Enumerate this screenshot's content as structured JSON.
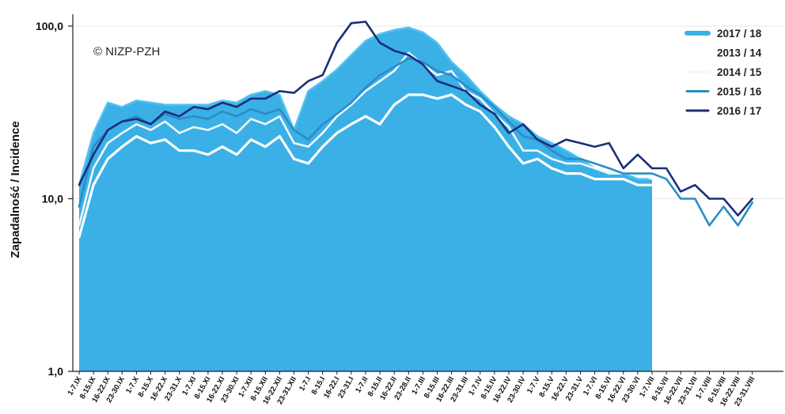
{
  "chart_data": {
    "type": "area",
    "copyright": "© NIZP-PZH",
    "ylabel": "Zapadalność / Incidence",
    "yscale": "log",
    "ylim": [
      1,
      100
    ],
    "yticks": [
      "1,0",
      "10,0",
      "100,0"
    ],
    "ytick_values": [
      1,
      10,
      100
    ],
    "legend_position": "top-right",
    "categories": [
      "1-7.IX",
      "8-15.IX",
      "16-22.IX",
      "23-30.IX",
      "1-7.X",
      "8-15.X",
      "16-22.X",
      "23-31.X",
      "1-7.XI",
      "8-15.XI",
      "16-22.XI",
      "23-30.XI",
      "1-7.XII",
      "8-15.XII",
      "16-22.XII",
      "23-31.XII",
      "1-7.I",
      "8-15.I",
      "16-22.I",
      "23-31.I",
      "1-7.II",
      "8-15.II",
      "16-22.II",
      "23-28.II",
      "1-7.III",
      "8-15.III",
      "16-22.III",
      "23-31.III",
      "1-7.IV",
      "8-15.IV",
      "16-22.IV",
      "23-30.IV",
      "1-7.V",
      "8-15.V",
      "16-22.V",
      "23-31.V",
      "1-7.VI",
      "8-15.VI",
      "16-22.VI",
      "23-30.VI",
      "1-7.VII",
      "8-15.VII",
      "16-22.VII",
      "23-31.VII",
      "1-7.VIII",
      "8-15.VIII",
      "16-22.VIII",
      "23-31.VIII"
    ],
    "series": [
      {
        "name": "2017 / 18",
        "style": "area",
        "color": "#3bb0e6",
        "values": [
          12,
          24,
          36,
          34,
          37,
          36,
          35,
          35,
          35,
          35,
          37,
          36,
          40,
          42,
          40,
          25,
          42,
          48,
          56,
          68,
          82,
          90,
          95,
          98,
          92,
          80,
          62,
          52,
          42,
          35,
          30,
          27,
          23,
          21,
          19,
          17,
          15,
          14,
          14,
          13,
          13,
          null,
          null,
          null,
          null,
          null,
          null,
          null
        ]
      },
      {
        "name": "2013 / 14",
        "style": "line",
        "color": "#ffffff",
        "values": [
          6,
          12,
          17,
          20,
          23,
          21,
          22,
          19,
          19,
          18,
          20,
          18,
          22,
          20,
          23,
          17,
          16,
          20,
          24,
          27,
          30,
          27,
          35,
          40,
          40,
          38,
          40,
          35,
          32,
          26,
          20,
          16,
          17,
          15,
          14,
          14,
          13,
          13,
          13,
          12,
          12,
          null,
          null,
          null,
          null,
          null,
          null,
          null
        ]
      },
      {
        "name": "2014 / 15",
        "style": "line",
        "color": "#eef8fd",
        "values": [
          7,
          15,
          21,
          24,
          27,
          25,
          28,
          24,
          26,
          25,
          27,
          24,
          29,
          27,
          30,
          21,
          20,
          24,
          30,
          35,
          42,
          48,
          55,
          70,
          60,
          52,
          55,
          42,
          38,
          31,
          26,
          19,
          19,
          17,
          16,
          16,
          15,
          14,
          14,
          14,
          13,
          null,
          null,
          null,
          null,
          null,
          null,
          null
        ]
      },
      {
        "name": "2015 / 16",
        "style": "line",
        "color": "#2a8cc6",
        "values": [
          9,
          20,
          25,
          28,
          30,
          27,
          31,
          29,
          30,
          29,
          32,
          30,
          33,
          31,
          33,
          25,
          22,
          27,
          31,
          36,
          44,
          52,
          58,
          65,
          62,
          55,
          52,
          45,
          40,
          34,
          28,
          23,
          22,
          19,
          17,
          17,
          16,
          15,
          14,
          14,
          14,
          13,
          10,
          10,
          7,
          9,
          7,
          9.5
        ]
      },
      {
        "name": "2016 / 17",
        "style": "line",
        "color": "#1a2e78",
        "values": [
          12,
          18,
          25,
          28,
          29,
          27,
          32,
          30,
          34,
          33,
          36,
          34,
          38,
          38,
          42,
          41,
          48,
          52,
          80,
          104,
          106,
          80,
          72,
          68,
          60,
          48,
          45,
          42,
          35,
          31,
          24,
          27,
          22,
          20,
          22,
          21,
          20,
          21,
          15,
          18,
          15,
          15,
          11,
          12,
          10,
          10,
          8,
          10
        ]
      }
    ]
  }
}
